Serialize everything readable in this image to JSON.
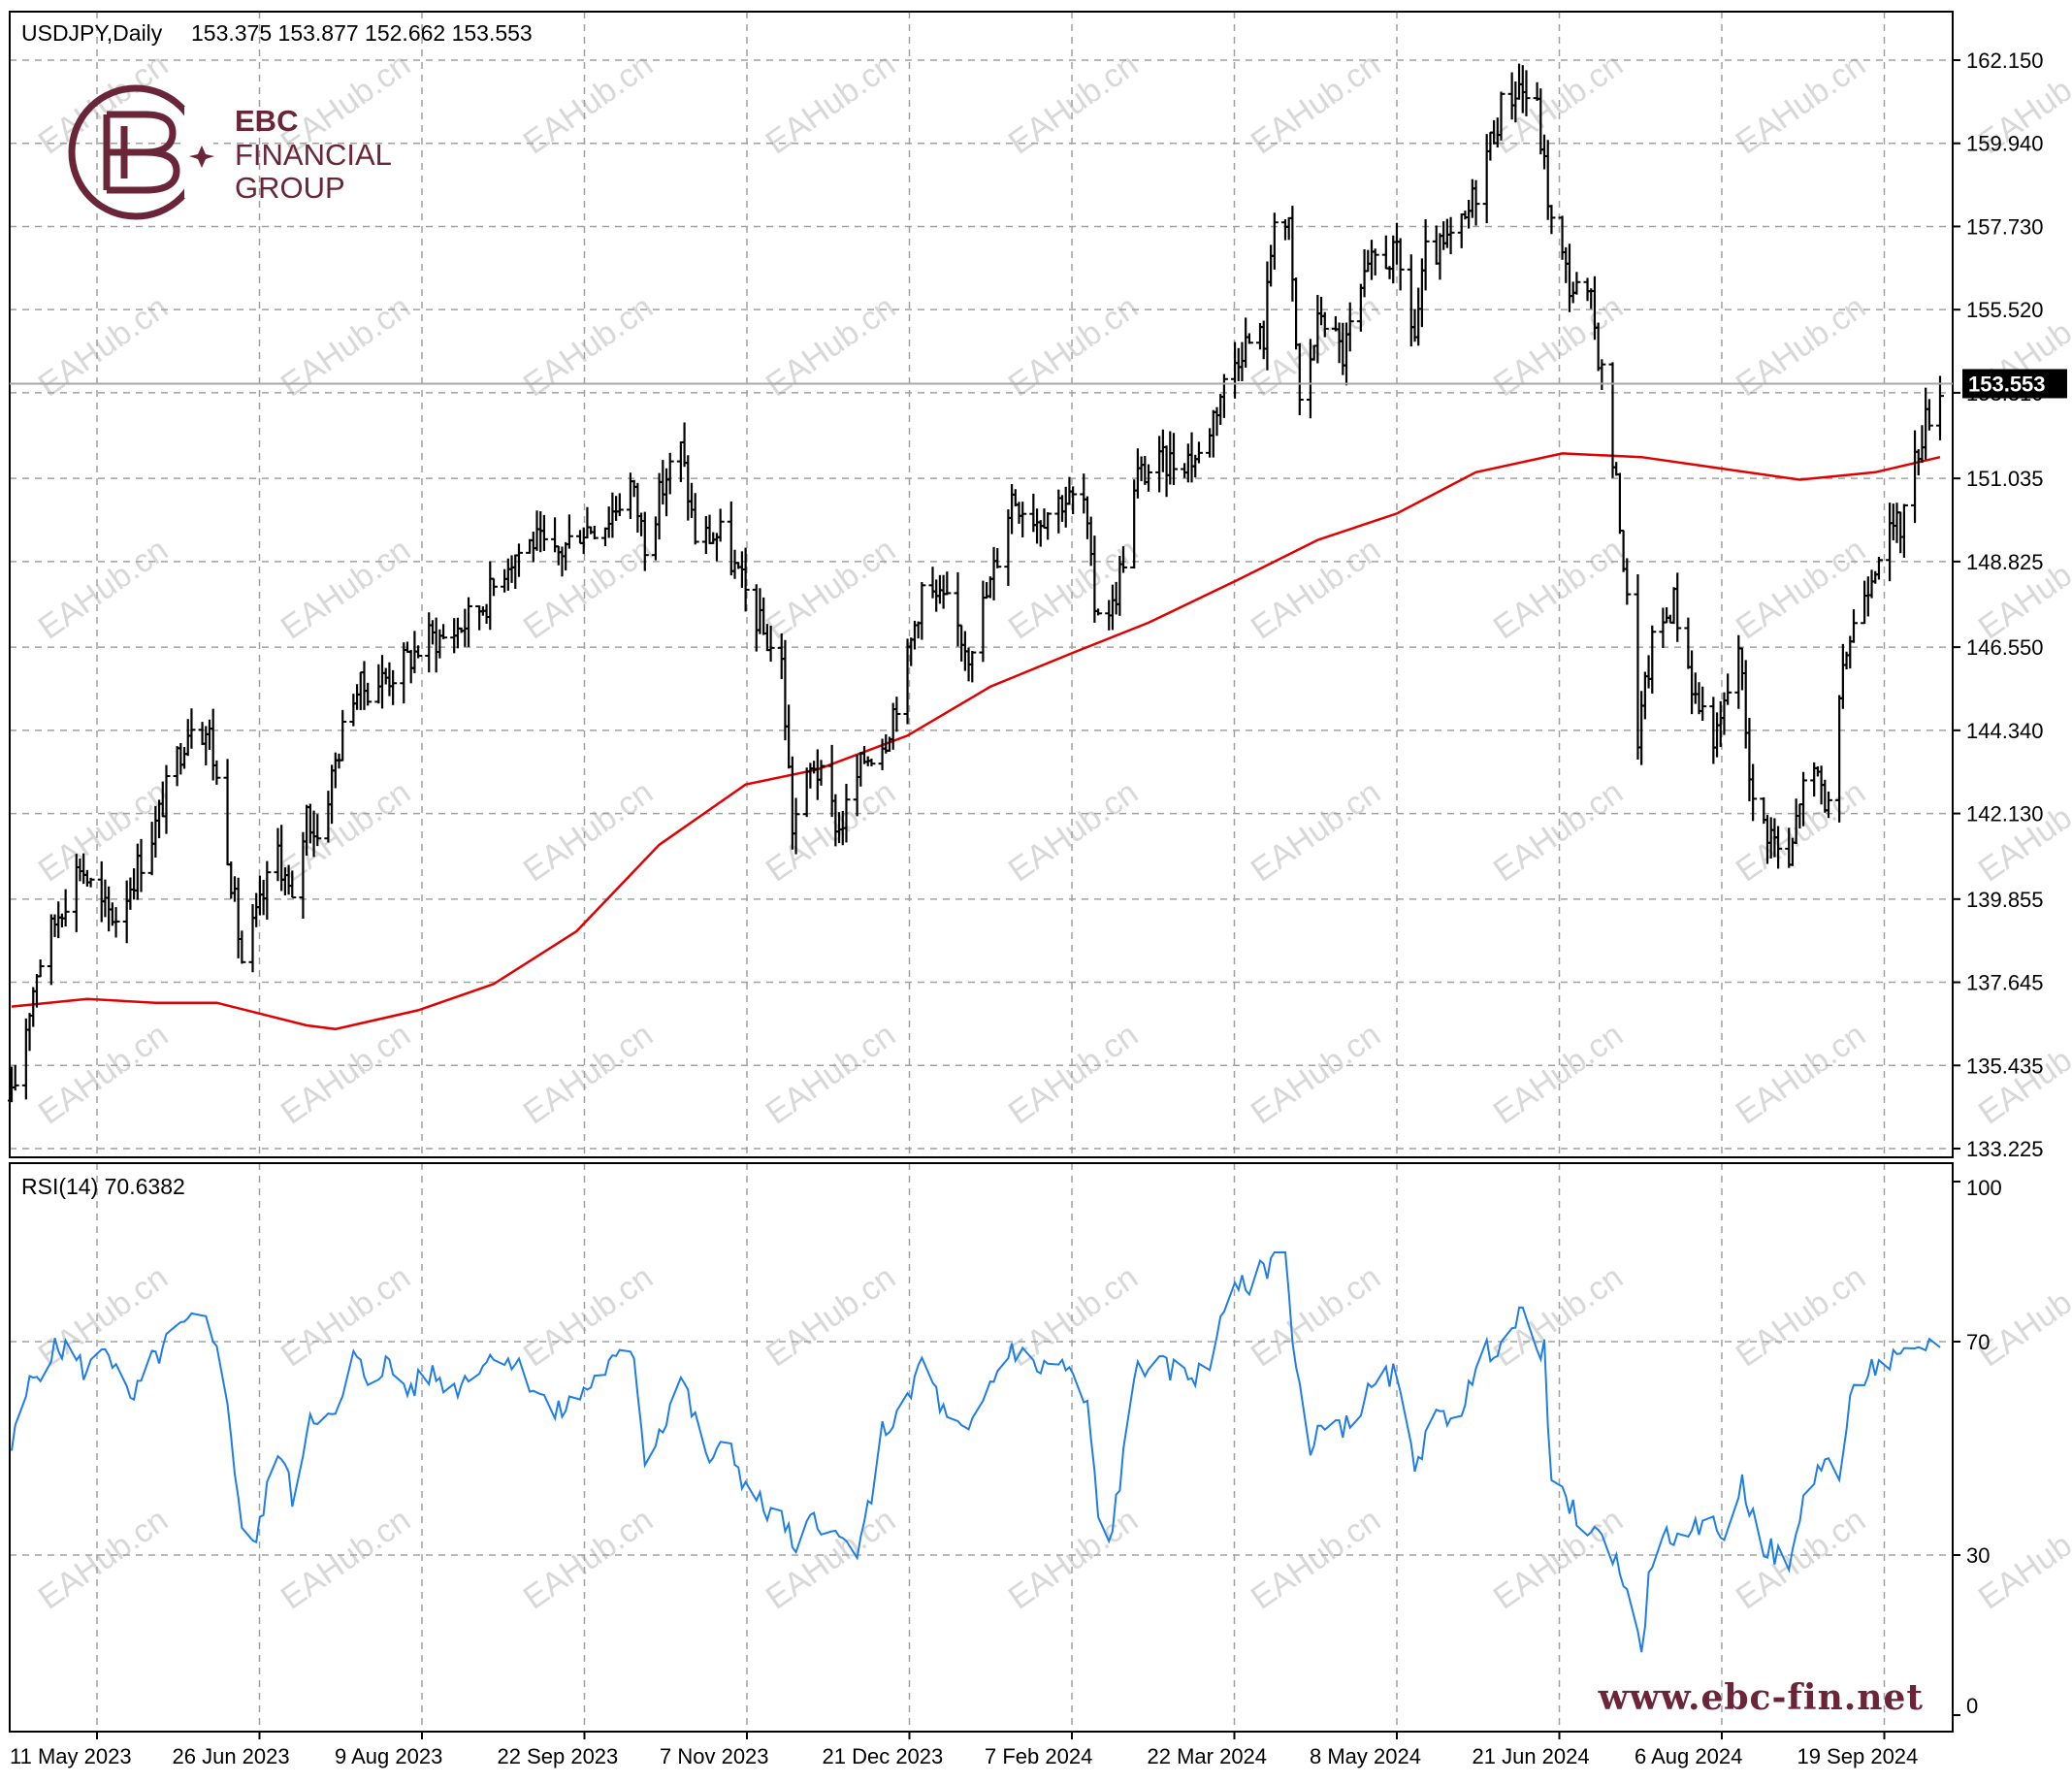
{
  "branding": {
    "logo_line1": "EBC",
    "logo_line2": "FINANCIAL",
    "logo_line3": "GROUP",
    "logo_color": "#6b2538",
    "website": "www.ebc-fin.net",
    "watermark": "EAHub.cn"
  },
  "chart_data": [
    {
      "type": "ohlc",
      "title": "USDJPY,Daily",
      "ohlc_readout": "153.375 153.877 152.662 153.553",
      "last_price": 153.553,
      "last_price_label": "153.553",
      "ylim": [
        133.225,
        162.15
      ],
      "y_ticks": [
        "162.150",
        "159.940",
        "157.730",
        "155.520",
        "153.310",
        "151.035",
        "148.825",
        "146.550",
        "144.340",
        "142.130",
        "139.855",
        "137.645",
        "135.435",
        "133.225"
      ],
      "x_ticks": [
        "11 May 2023",
        "26 Jun 2023",
        "9 Aug 2023",
        "22 Sep 2023",
        "7 Nov 2023",
        "21 Dec 2023",
        "7 Feb 2024",
        "22 Mar 2024",
        "8 May 2024",
        "21 Jun 2024",
        "6 Aug 2024",
        "19 Sep 2024"
      ],
      "grid": true,
      "bar_color": "#000000",
      "ma_color": "#e00000",
      "close_path": [
        [
          "2023-05-11",
          134.5
        ],
        [
          "2023-05-18",
          138.0
        ],
        [
          "2023-05-24",
          139.5
        ],
        [
          "2023-05-30",
          140.8
        ],
        [
          "2023-06-05",
          139.6
        ],
        [
          "2023-06-09",
          139.4
        ],
        [
          "2023-06-14",
          140.5
        ],
        [
          "2023-06-20",
          141.8
        ],
        [
          "2023-06-26",
          143.6
        ],
        [
          "2023-06-30",
          144.7
        ],
        [
          "2023-07-05",
          144.2
        ],
        [
          "2023-07-10",
          141.2
        ],
        [
          "2023-07-14",
          138.2
        ],
        [
          "2023-07-19",
          139.6
        ],
        [
          "2023-07-24",
          141.2
        ],
        [
          "2023-07-28",
          139.6
        ],
        [
          "2023-08-01",
          142.2
        ],
        [
          "2023-08-04",
          141.5
        ],
        [
          "2023-08-09",
          143.5
        ],
        [
          "2023-08-14",
          145.4
        ],
        [
          "2023-08-18",
          145.5
        ],
        [
          "2023-08-24",
          145.8
        ],
        [
          "2023-08-29",
          146.2
        ],
        [
          "2023-09-04",
          146.8
        ],
        [
          "2023-09-08",
          146.8
        ],
        [
          "2023-09-14",
          147.2
        ],
        [
          "2023-09-20",
          147.8
        ],
        [
          "2023-09-26",
          148.9
        ],
        [
          "2023-10-03",
          149.4
        ],
        [
          "2023-10-09",
          148.9
        ],
        [
          "2023-10-16",
          149.7
        ],
        [
          "2023-10-23",
          149.9
        ],
        [
          "2023-10-30",
          150.9
        ],
        [
          "2023-11-03",
          149.4
        ],
        [
          "2023-11-09",
          151.1
        ],
        [
          "2023-11-13",
          151.8
        ],
        [
          "2023-11-17",
          149.5
        ],
        [
          "2023-11-24",
          149.5
        ],
        [
          "2023-11-30",
          148.2
        ],
        [
          "2023-12-06",
          146.9
        ],
        [
          "2023-12-11",
          146.1
        ],
        [
          "2023-12-14",
          141.8
        ],
        [
          "2023-12-20",
          143.5
        ],
        [
          "2023-12-27",
          141.7
        ],
        [
          "2024-01-03",
          143.6
        ],
        [
          "2024-01-09",
          144.2
        ],
        [
          "2024-01-15",
          146.2
        ],
        [
          "2024-01-19",
          148.1
        ],
        [
          "2024-01-26",
          147.6
        ],
        [
          "2024-02-01",
          146.5
        ],
        [
          "2024-02-07",
          148.2
        ],
        [
          "2024-02-13",
          150.6
        ],
        [
          "2024-02-20",
          150.0
        ],
        [
          "2024-02-27",
          150.5
        ],
        [
          "2024-03-04",
          150.4
        ],
        [
          "2024-03-07",
          147.7
        ],
        [
          "2024-03-12",
          147.6
        ],
        [
          "2024-03-15",
          149.0
        ],
        [
          "2024-03-19",
          151.1
        ],
        [
          "2024-03-25",
          151.4
        ],
        [
          "2024-04-01",
          151.6
        ],
        [
          "2024-04-05",
          151.6
        ],
        [
          "2024-04-11",
          153.3
        ],
        [
          "2024-04-17",
          154.6
        ],
        [
          "2024-04-23",
          154.8
        ],
        [
          "2024-04-26",
          158.2
        ],
        [
          "2024-04-30",
          157.6
        ],
        [
          "2024-05-03",
          153.0
        ],
        [
          "2024-05-09",
          155.5
        ],
        [
          "2024-05-15",
          154.3
        ],
        [
          "2024-05-20",
          155.9
        ],
        [
          "2024-05-24",
          156.9
        ],
        [
          "2024-05-30",
          156.9
        ],
        [
          "2024-06-04",
          154.8
        ],
        [
          "2024-06-07",
          156.9
        ],
        [
          "2024-06-12",
          157.1
        ],
        [
          "2024-06-18",
          157.8
        ],
        [
          "2024-06-24",
          159.7
        ],
        [
          "2024-06-28",
          160.9
        ],
        [
          "2024-07-03",
          161.5
        ],
        [
          "2024-07-08",
          160.8
        ],
        [
          "2024-07-12",
          157.8
        ],
        [
          "2024-07-17",
          156.2
        ],
        [
          "2024-07-23",
          155.6
        ],
        [
          "2024-07-26",
          153.8
        ],
        [
          "2024-07-31",
          150.0
        ],
        [
          "2024-08-05",
          144.2
        ],
        [
          "2024-08-09",
          146.6
        ],
        [
          "2024-08-15",
          147.8
        ],
        [
          "2024-08-21",
          145.2
        ],
        [
          "2024-08-27",
          144.1
        ],
        [
          "2024-09-02",
          146.6
        ],
        [
          "2024-09-06",
          142.3
        ],
        [
          "2024-09-11",
          141.6
        ],
        [
          "2024-09-16",
          140.6
        ],
        [
          "2024-09-19",
          142.6
        ],
        [
          "2024-09-24",
          143.2
        ],
        [
          "2024-09-27",
          142.2
        ],
        [
          "2024-10-02",
          146.5
        ],
        [
          "2024-10-07",
          148.1
        ],
        [
          "2024-10-11",
          149.2
        ],
        [
          "2024-10-17",
          149.8
        ],
        [
          "2024-10-23",
          152.3
        ],
        [
          "2024-10-28",
          153.553
        ]
      ],
      "ma_path": [
        [
          "2023-05-11",
          137.0
        ],
        [
          "2023-06-01",
          137.2
        ],
        [
          "2023-06-20",
          137.1
        ],
        [
          "2023-07-07",
          137.1
        ],
        [
          "2023-08-01",
          136.5
        ],
        [
          "2023-08-09",
          136.4
        ],
        [
          "2023-09-01",
          136.9
        ],
        [
          "2023-09-22",
          137.6
        ],
        [
          "2023-10-15",
          139.0
        ],
        [
          "2023-11-07",
          141.3
        ],
        [
          "2023-12-01",
          142.9
        ],
        [
          "2023-12-21",
          143.3
        ],
        [
          "2024-01-15",
          144.2
        ],
        [
          "2024-02-07",
          145.5
        ],
        [
          "2024-03-01",
          146.4
        ],
        [
          "2024-03-22",
          147.2
        ],
        [
          "2024-04-15",
          148.3
        ],
        [
          "2024-05-08",
          149.4
        ],
        [
          "2024-05-30",
          150.1
        ],
        [
          "2024-06-21",
          151.2
        ],
        [
          "2024-07-15",
          151.7
        ],
        [
          "2024-08-06",
          151.6
        ],
        [
          "2024-08-28",
          151.3
        ],
        [
          "2024-09-19",
          151.0
        ],
        [
          "2024-10-10",
          151.2
        ],
        [
          "2024-10-28",
          151.6
        ]
      ]
    },
    {
      "type": "line",
      "title": "RSI(14) 70.6382",
      "ylim": [
        0,
        100
      ],
      "y_ticks": [
        "100",
        "70",
        "30",
        "0"
      ],
      "grid": true,
      "line_color": "#1e7ee6",
      "series": [
        [
          "2023-05-11",
          50
        ],
        [
          "2023-05-16",
          62
        ],
        [
          "2023-05-22",
          68
        ],
        [
          "2023-05-26",
          69
        ],
        [
          "2023-06-01",
          64
        ],
        [
          "2023-06-06",
          70
        ],
        [
          "2023-06-13",
          58
        ],
        [
          "2023-06-19",
          66
        ],
        [
          "2023-06-26",
          72
        ],
        [
          "2023-07-03",
          74
        ],
        [
          "2023-07-07",
          71
        ],
        [
          "2023-07-11",
          52
        ],
        [
          "2023-07-14",
          36
        ],
        [
          "2023-07-18",
          32
        ],
        [
          "2023-07-21",
          42
        ],
        [
          "2023-07-25",
          50
        ],
        [
          "2023-07-28",
          40
        ],
        [
          "2023-08-02",
          57
        ],
        [
          "2023-08-09",
          55
        ],
        [
          "2023-08-14",
          67
        ],
        [
          "2023-08-18",
          63
        ],
        [
          "2023-08-23",
          66
        ],
        [
          "2023-08-29",
          61
        ],
        [
          "2023-09-05",
          64
        ],
        [
          "2023-09-11",
          61
        ],
        [
          "2023-09-18",
          66
        ],
        [
          "2023-09-25",
          68
        ],
        [
          "2023-10-03",
          62
        ],
        [
          "2023-10-09",
          56
        ],
        [
          "2023-10-16",
          60
        ],
        [
          "2023-10-23",
          65
        ],
        [
          "2023-10-31",
          68
        ],
        [
          "2023-11-03",
          48
        ],
        [
          "2023-11-09",
          56
        ],
        [
          "2023-11-13",
          64
        ],
        [
          "2023-11-20",
          48
        ],
        [
          "2023-11-27",
          50
        ],
        [
          "2023-12-01",
          43
        ],
        [
          "2023-12-07",
          38
        ],
        [
          "2023-12-12",
          36
        ],
        [
          "2023-12-15",
          29
        ],
        [
          "2023-12-20",
          38
        ],
        [
          "2023-12-26",
          33
        ],
        [
          "2024-01-02",
          31
        ],
        [
          "2024-01-08",
          53
        ],
        [
          "2024-01-15",
          58
        ],
        [
          "2024-01-19",
          67
        ],
        [
          "2024-01-26",
          55
        ],
        [
          "2024-02-01",
          52
        ],
        [
          "2024-02-07",
          62
        ],
        [
          "2024-02-13",
          69
        ],
        [
          "2024-02-20",
          65
        ],
        [
          "2024-02-27",
          66
        ],
        [
          "2024-03-05",
          58
        ],
        [
          "2024-03-08",
          37
        ],
        [
          "2024-03-11",
          32
        ],
        [
          "2024-03-15",
          48
        ],
        [
          "2024-03-19",
          66
        ],
        [
          "2024-03-26",
          65
        ],
        [
          "2024-04-02",
          64
        ],
        [
          "2024-04-08",
          64
        ],
        [
          "2024-04-11",
          76
        ],
        [
          "2024-04-17",
          80
        ],
        [
          "2024-04-24",
          84
        ],
        [
          "2024-04-29",
          89
        ],
        [
          "2024-05-01",
          70
        ],
        [
          "2024-05-06",
          48
        ],
        [
          "2024-05-10",
          56
        ],
        [
          "2024-05-16",
          54
        ],
        [
          "2024-05-22",
          60
        ],
        [
          "2024-05-29",
          64
        ],
        [
          "2024-06-04",
          48
        ],
        [
          "2024-06-10",
          55
        ],
        [
          "2024-06-17",
          58
        ],
        [
          "2024-06-24",
          68
        ],
        [
          "2024-07-01",
          72
        ],
        [
          "2024-07-04",
          75
        ],
        [
          "2024-07-10",
          68
        ],
        [
          "2024-07-12",
          43
        ],
        [
          "2024-07-18",
          38
        ],
        [
          "2024-07-24",
          34
        ],
        [
          "2024-07-30",
          30
        ],
        [
          "2024-08-02",
          22
        ],
        [
          "2024-08-06",
          13
        ],
        [
          "2024-08-09",
          30
        ],
        [
          "2024-08-14",
          34
        ],
        [
          "2024-08-19",
          31
        ],
        [
          "2024-08-23",
          38
        ],
        [
          "2024-08-28",
          33
        ],
        [
          "2024-09-03",
          43
        ],
        [
          "2024-09-09",
          32
        ],
        [
          "2024-09-12",
          30
        ],
        [
          "2024-09-17",
          29
        ],
        [
          "2024-09-20",
          40
        ],
        [
          "2024-09-25",
          48
        ],
        [
          "2024-09-30",
          45
        ],
        [
          "2024-10-03",
          58
        ],
        [
          "2024-10-08",
          65
        ],
        [
          "2024-10-14",
          66
        ],
        [
          "2024-10-21",
          67
        ],
        [
          "2024-10-25",
          70
        ],
        [
          "2024-10-28",
          70.6382
        ]
      ]
    }
  ]
}
